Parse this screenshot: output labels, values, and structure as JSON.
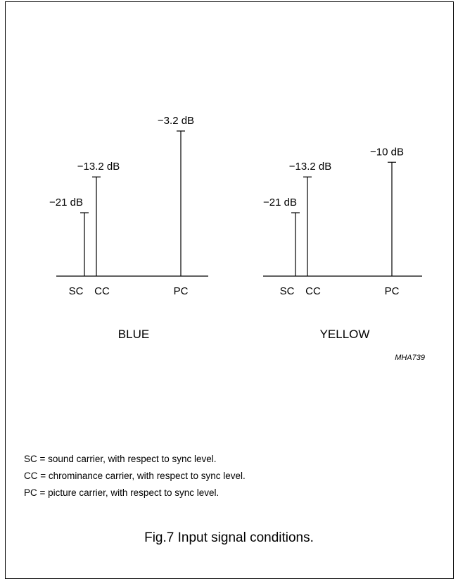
{
  "panels": [
    {
      "title": "BLUE",
      "bars": [
        {
          "category": "SC",
          "label": "−21 dB",
          "db": -21
        },
        {
          "category": "CC",
          "label": "−13.2 dB",
          "db": -13.2
        },
        {
          "category": "PC",
          "label": "−3.2 dB",
          "db": -3.2
        }
      ]
    },
    {
      "title": "YELLOW",
      "bars": [
        {
          "category": "SC",
          "label": "−21 dB",
          "db": -21
        },
        {
          "category": "CC",
          "label": "−13.2 dB",
          "db": -13.2
        },
        {
          "category": "PC",
          "label": "−10 dB",
          "db": -10
        }
      ]
    }
  ],
  "figure_code": "MHA739",
  "legend": [
    "SC = sound carrier, with respect to sync level.",
    "CC = chrominance carrier, with respect to sync level.",
    "PC = picture carrier, with respect to sync level."
  ],
  "caption": "Fig.7  Input signal conditions."
}
